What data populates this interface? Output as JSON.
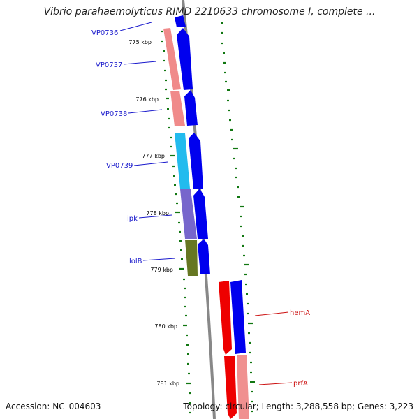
{
  "title": "Vibrio parahaemolyticus RIMD 2210633 chromosome I, complete ...",
  "footer": {
    "accession": "Accession: NC_004603",
    "stats": "Topology: circular; Length: 3,288,558 bp; Genes: 3,223"
  },
  "ticks": [
    "775 kbp",
    "776 kbp",
    "777 kbp",
    "778 kbp",
    "779 kbp",
    "780 kbp",
    "781 kbp"
  ],
  "gene_labels": [
    "VP0736",
    "VP0737",
    "VP0738",
    "VP0739",
    "ipk",
    "lolB",
    "hemA",
    "prfA"
  ],
  "colors": {
    "backbone": "#888888",
    "tick": "#117711",
    "label_blue": "#1a1acc",
    "label_red": "#cc1111",
    "cds_blue": "#0000ee",
    "salmon": "#f08a8a",
    "cyan": "#22bbee",
    "purple": "#7766cc",
    "olive": "#667722",
    "red": "#ee0000",
    "pink": "#f09090"
  }
}
